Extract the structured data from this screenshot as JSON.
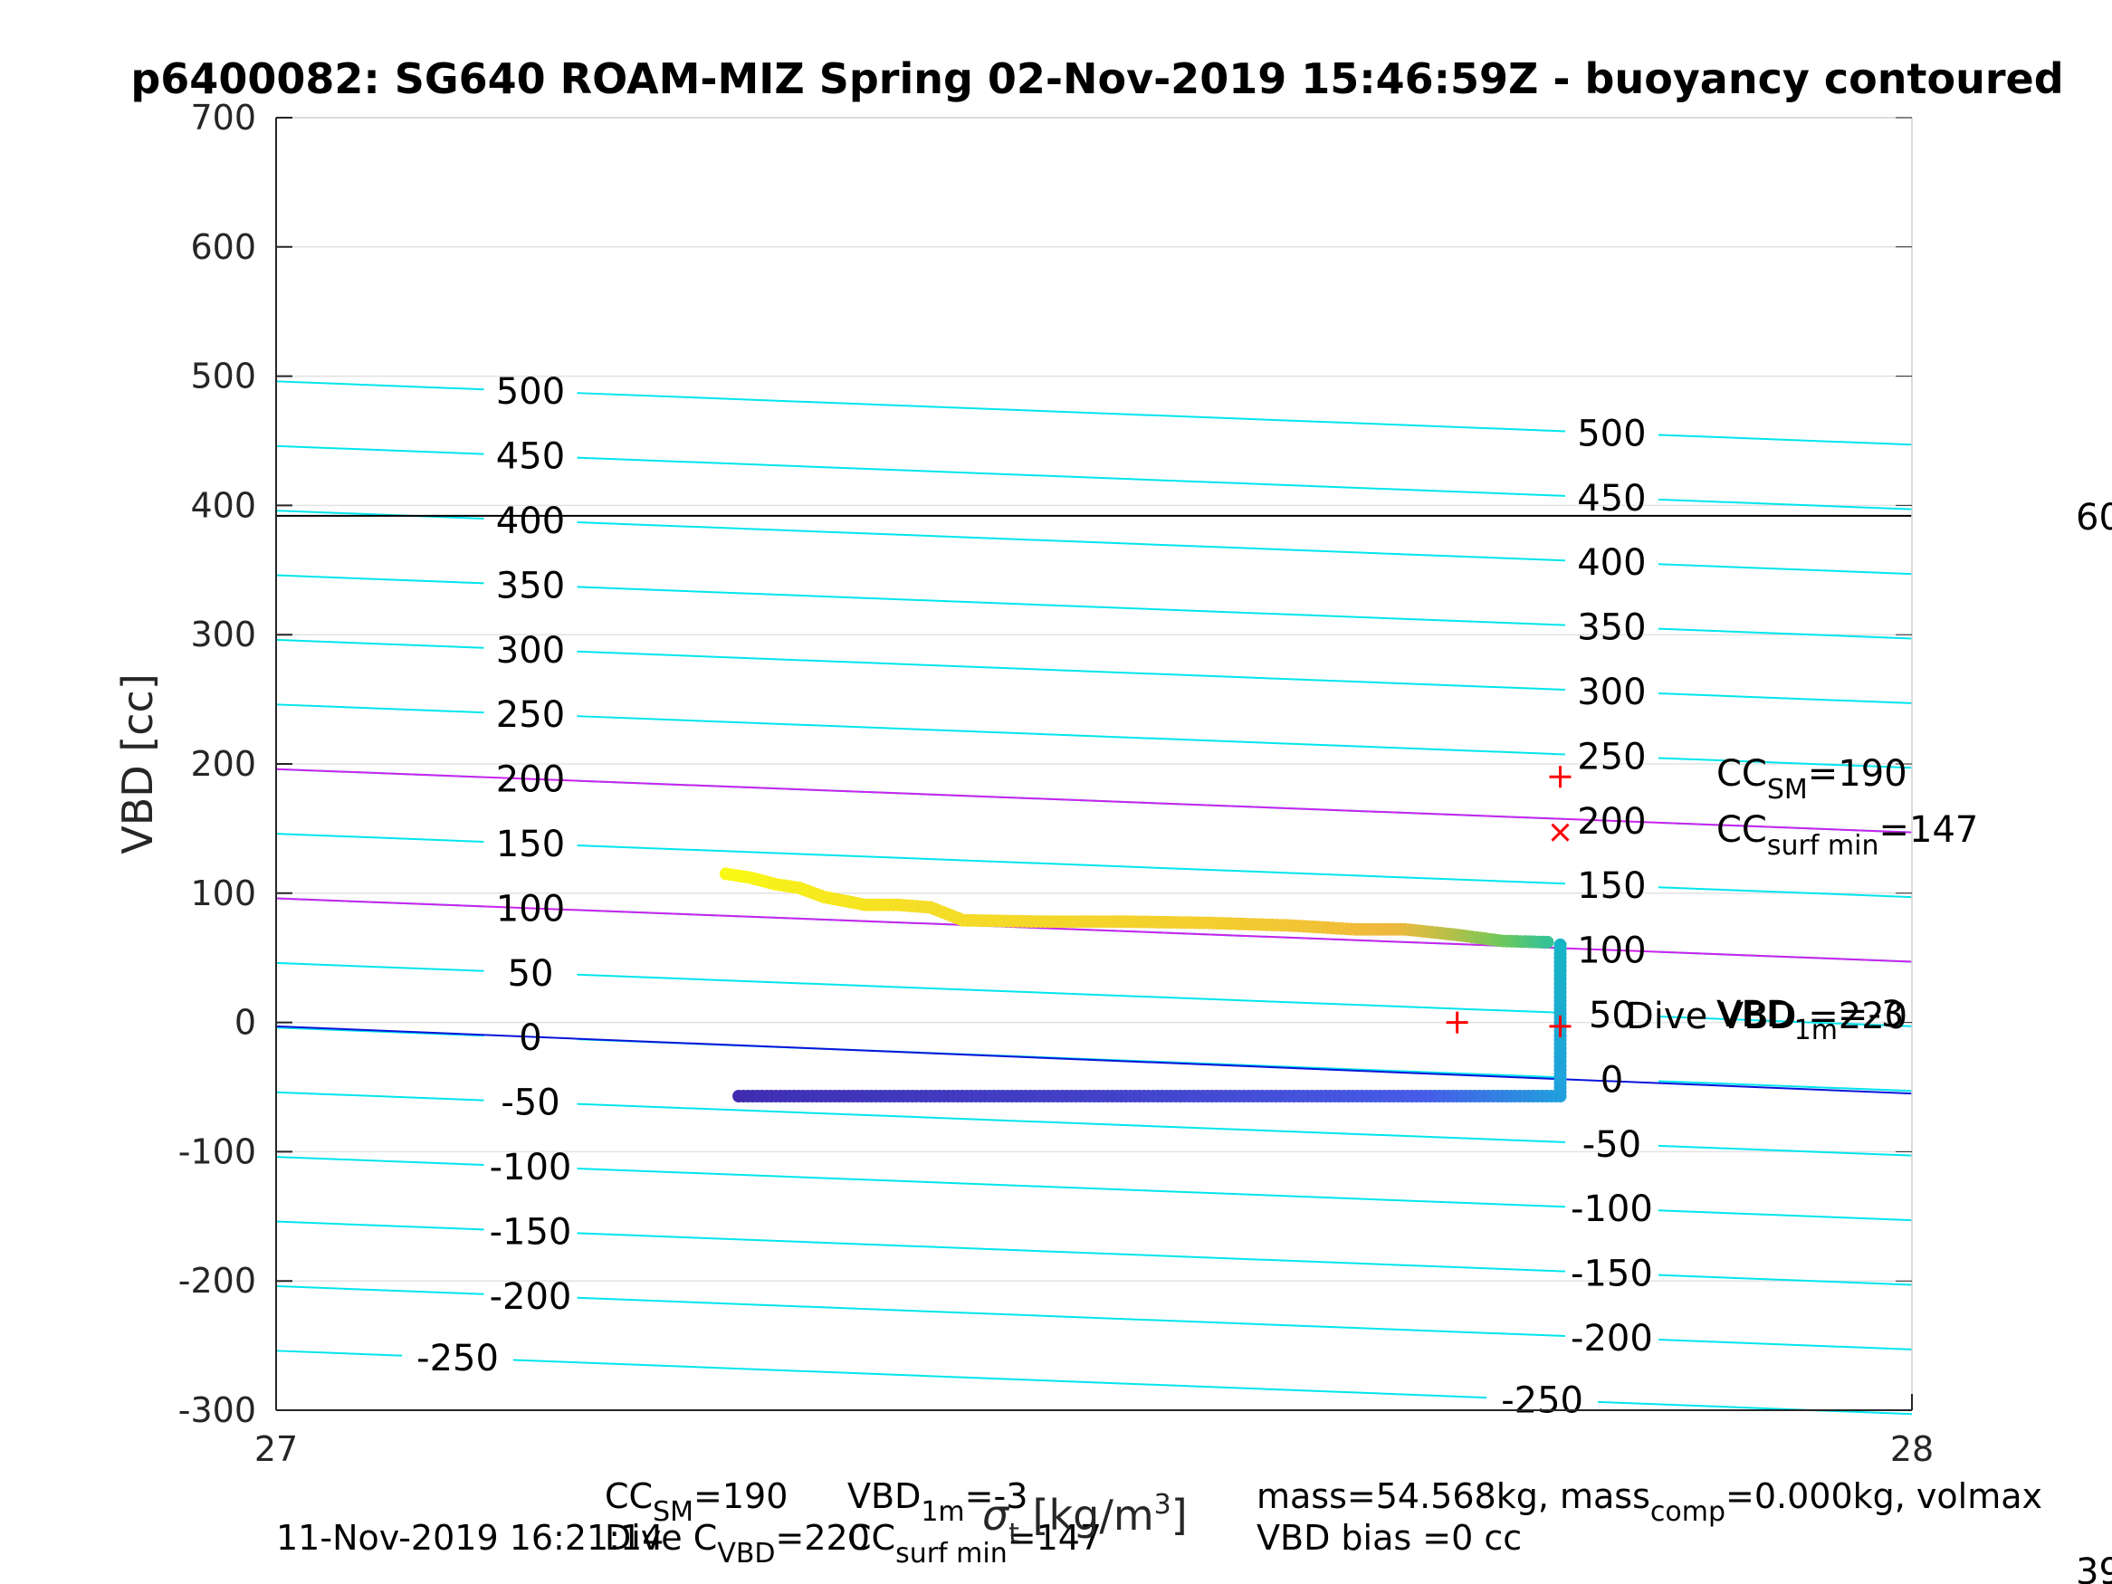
{
  "chart_data": {
    "type": "scatter",
    "title": "p6400082: SG640 ROAM-MIZ Spring 02-Nov-2019 15:46:59Z - buoyancy contoured",
    "ylabel": "VBD [cc]",
    "xlim": [
      27,
      28
    ],
    "ylim": [
      -300,
      700
    ],
    "x_ticks": [
      "27",
      "28"
    ],
    "y_ticks": [
      "700",
      "600",
      "500",
      "400",
      "300",
      "200",
      "100",
      "0",
      "-100",
      "-200",
      "-300"
    ],
    "grid": true,
    "colormap": "parula",
    "contours": {
      "color": "#00e5ee",
      "levels": [
        500,
        450,
        400,
        350,
        300,
        250,
        200,
        150,
        100,
        50,
        0,
        -50,
        -100,
        -150,
        -200,
        -250
      ],
      "y_at_x27": [
        496,
        446,
        396,
        346,
        296,
        246,
        196,
        146,
        96,
        46,
        -4,
        -54,
        -104,
        -154,
        -204,
        -254
      ],
      "y_at_x28": [
        447,
        397,
        347,
        297,
        247,
        197,
        147,
        97,
        47,
        -3,
        -53,
        -103,
        -153,
        -203,
        -253,
        -303
      ],
      "left_labels": [
        "500",
        "450",
        "400",
        "350",
        "300",
        "250",
        "200",
        "150",
        "100",
        "50",
        "0",
        "-50",
        "-100",
        "-150",
        "-200",
        "-250"
      ],
      "right_labels": [
        "500",
        "450",
        "400",
        "350",
        "300",
        "250",
        "200",
        "150",
        "100",
        "50",
        "0",
        "-50",
        "-100",
        "-150",
        "-200",
        "-250"
      ]
    },
    "reference_lines": [
      {
        "color": "#000000",
        "y_at_x27": 392,
        "y_at_x28": 392
      },
      {
        "color": "#cc22ee",
        "y_at_x27": 196,
        "y_at_x28": 147
      },
      {
        "color": "#cc22ee",
        "y_at_x27": 96,
        "y_at_x28": 47
      },
      {
        "color": "#0a14d8",
        "y_at_x27": -3,
        "y_at_x28": -55
      }
    ],
    "markers": [
      {
        "symbol": "+",
        "x": 27.785,
        "y": 190,
        "color": "#ff0000"
      },
      {
        "symbol": "x",
        "x": 27.785,
        "y": 147,
        "color": "#ff0000"
      },
      {
        "symbol": "+",
        "x": 27.722,
        "y": 0,
        "color": "#ff0000"
      },
      {
        "symbol": "+",
        "x": 27.785,
        "y": -3,
        "color": "#ff0000"
      }
    ],
    "upper_branch": [
      {
        "x": 27.275,
        "y": 115,
        "c": 1.0
      },
      {
        "x": 27.29,
        "y": 112,
        "c": 0.99
      },
      {
        "x": 27.305,
        "y": 107,
        "c": 0.98
      },
      {
        "x": 27.32,
        "y": 104,
        "c": 0.97
      },
      {
        "x": 27.335,
        "y": 97,
        "c": 0.96
      },
      {
        "x": 27.36,
        "y": 91,
        "c": 0.95
      },
      {
        "x": 27.38,
        "y": 91,
        "c": 0.94
      },
      {
        "x": 27.4,
        "y": 89,
        "c": 0.93
      },
      {
        "x": 27.42,
        "y": 79,
        "c": 0.93
      },
      {
        "x": 27.47,
        "y": 78,
        "c": 0.92
      },
      {
        "x": 27.52,
        "y": 78,
        "c": 0.91
      },
      {
        "x": 27.57,
        "y": 77,
        "c": 0.9
      },
      {
        "x": 27.62,
        "y": 75,
        "c": 0.88
      },
      {
        "x": 27.66,
        "y": 72,
        "c": 0.86
      },
      {
        "x": 27.69,
        "y": 72,
        "c": 0.84
      },
      {
        "x": 27.72,
        "y": 68,
        "c": 0.78
      },
      {
        "x": 27.75,
        "y": 63,
        "c": 0.7
      },
      {
        "x": 27.78,
        "y": 62,
        "c": 0.6
      }
    ],
    "lower_branch": [
      {
        "x": 27.785,
        "y": 60,
        "c": 0.5
      },
      {
        "x": 27.785,
        "y": 30,
        "c": 0.48
      },
      {
        "x": 27.785,
        "y": 0,
        "c": 0.45
      },
      {
        "x": 27.785,
        "y": -30,
        "c": 0.42
      },
      {
        "x": 27.785,
        "y": -57,
        "c": 0.4
      },
      {
        "x": 27.7,
        "y": -57,
        "c": 0.2
      },
      {
        "x": 27.6,
        "y": -57,
        "c": 0.15
      },
      {
        "x": 27.5,
        "y": -57,
        "c": 0.1
      },
      {
        "x": 27.4,
        "y": -57,
        "c": 0.07
      },
      {
        "x": 27.3,
        "y": -57,
        "c": 0.04
      },
      {
        "x": 27.28,
        "y": -57,
        "c": 0.02
      }
    ],
    "annotations": {
      "cc_sm": {
        "main": "CC",
        "sub": "SM",
        "rest": "=190"
      },
      "cc_surf_min": {
        "main": "CC",
        "sub": "surf min",
        "rest": "=147"
      },
      "dive_vbd": {
        "text": "Dive VBD =220"
      },
      "vbd_1m": {
        "main": "VBD",
        "sub": "1m",
        "rest": "=-3"
      },
      "right_edge_top": "60",
      "right_edge_bottom": "39"
    }
  },
  "footer": {
    "timestamp": "11-Nov-2019 16:21:14",
    "xlabel_main": "σ",
    "xlabel_sub": "t",
    "xlabel_rest": " [kg/m",
    "xlabel_sup": "3",
    "xlabel_end": "]",
    "line1_col1": {
      "main": "CC",
      "sub": "SM",
      "rest": "=190"
    },
    "line1_col2": {
      "main": "VBD",
      "sub": "1m",
      "rest": "=-3"
    },
    "line2_col1": {
      "main": "Dive C",
      "sub": "VBD",
      "rest": "=220"
    },
    "line2_col2": {
      "main": "CC",
      "sub": "surf min",
      "rest": "=147"
    },
    "line1_right": {
      "a": "mass=54.568kg, mass",
      "sub": "comp",
      "b": "=0.000kg, volmax"
    },
    "line2_right": "VBD bias =0 cc"
  }
}
